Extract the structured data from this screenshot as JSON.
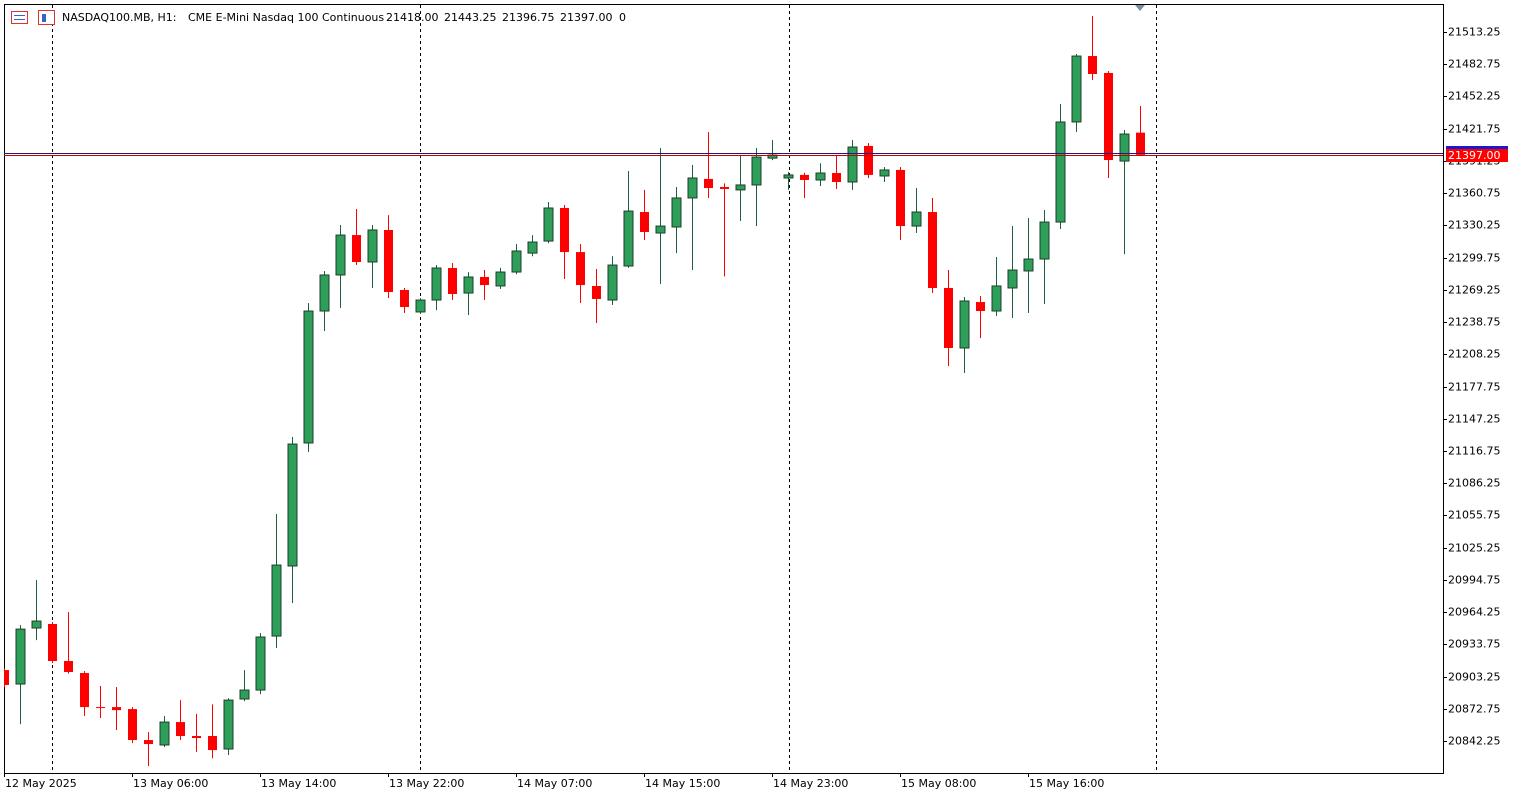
{
  "header": {
    "symbol": "NASDAQ100.MB, H1:",
    "description": "CME E-Mini Nasdaq 100 Continuous",
    "values": [
      "21418.00",
      "21443.25",
      "21396.75",
      "21397.00"
    ],
    "volume": "0"
  },
  "chart_data": {
    "type": "candlestick",
    "categories": [
      "12 May 2025",
      null,
      null,
      null,
      null,
      null,
      null,
      null,
      "13 May 06:00",
      null,
      null,
      null,
      null,
      null,
      null,
      null,
      "13 May 14:00",
      null,
      null,
      null,
      null,
      null,
      null,
      null,
      "13 May 22:00",
      null,
      null,
      null,
      null,
      null,
      null,
      null,
      "14 May 07:00",
      null,
      null,
      null,
      null,
      null,
      null,
      null,
      "14 May 15:00",
      null,
      null,
      null,
      null,
      null,
      null,
      null,
      "14 May 23:00",
      null,
      null,
      null,
      null,
      null,
      null,
      null,
      "15 May 08:00",
      null,
      null,
      null,
      null,
      null,
      null,
      null,
      "15 May 16:00",
      null,
      null,
      null,
      null,
      null,
      null,
      null
    ],
    "open": [
      20909.4,
      20896.2,
      20949.2,
      20953.0,
      20918.0,
      20906.6,
      20874.4,
      20874.4,
      20872.5,
      20843.2,
      20838.5,
      20860.2,
      20847.0,
      20847.0,
      20834.7,
      20882.0,
      20890.5,
      20941.6,
      21007.9,
      21124.3,
      21249.2,
      21283.3,
      21321.1,
      21295.6,
      21325.9,
      21269.1,
      21248.3,
      21259.6,
      21289.9,
      21266.2,
      21281.4,
      21272.9,
      21286.1,
      21304.0,
      21315.4,
      21346.7,
      21305.0,
      21272.9,
      21259.6,
      21291.8,
      21342.9,
      21323.0,
      21328.7,
      21356.2,
      21374.2,
      21366.6,
      21363.8,
      21368.5,
      21393.9,
      21375.1,
      21378.0,
      21373.2,
      21379.8,
      21371.3,
      21405.4,
      21377.0,
      21382.7,
      21329.6,
      21342.9,
      21271.0,
      21214.2,
      21257.7,
      21249.2,
      21271.0,
      21287.1,
      21298.4,
      21333.4,
      21428.1,
      21490.5,
      21474.5,
      21391.1,
      21418.0
    ],
    "high": [
      20911,
      20952,
      20994.6,
      20955,
      20964.4,
      20908.5,
      20894.3,
      20893.4,
      20874.4,
      20850.8,
      20865.9,
      20881.0,
      20868,
      20877,
      20882.9,
      20909.4,
      20944.5,
      21057.1,
      21130,
      21256.8,
      21287.1,
      21330.6,
      21345.7,
      21330.6,
      21340,
      21271,
      21261.5,
      21292.7,
      21294.6,
      21286,
      21288,
      21290,
      21312.6,
      21321,
      21352.4,
      21349.5,
      21312.6,
      21289,
      21301,
      21381.7,
      21363.8,
      21403.5,
      21366.6,
      21387.4,
      21418.6,
      21370,
      21397,
      21403.5,
      21411,
      21380.8,
      21380,
      21389,
      21397,
      21411,
      21408.2,
      21385.5,
      21385.5,
      21365.6,
      21356.2,
      21288,
      21262.5,
      21263.4,
      21300.3,
      21329.6,
      21337.2,
      21344.8,
      21445.1,
      21492.4,
      21528.4,
      21476.4,
      21420.5,
      21443.25
    ],
    "low": [
      20893,
      20858.3,
      20937.8,
      20916,
      20906,
      20865.9,
      20864,
      20852.7,
      20840.3,
      20818.6,
      20836.6,
      20843.2,
      20832,
      20826,
      20829,
      20880,
      20886.7,
      20930.3,
      20972.9,
      21115.8,
      21230.3,
      21252,
      21292.7,
      21271.0,
      21261.5,
      21247.3,
      21246.4,
      21250,
      21259.6,
      21245.4,
      21259.6,
      21270,
      21284,
      21301,
      21313.5,
      21279.5,
      21256.8,
      21237.9,
      21254.9,
      21290,
      21316.4,
      21274.8,
      21304,
      21288,
      21356.2,
      21282,
      21334.4,
      21329.6,
      21392,
      21363.8,
      21356,
      21367.5,
      21364.7,
      21363.8,
      21375,
      21371.3,
      21316.4,
      21323,
      21266.2,
      21197.2,
      21190.5,
      21223.6,
      21244.5,
      21242.6,
      21247.3,
      21255.8,
      21326.8,
      21418.6,
      21467.8,
      21375.1,
      21303.1,
      21396.75
    ],
    "close": [
      20895.3,
      20948.2,
      20955.8,
      20918.0,
      20907.6,
      20874.4,
      20873.5,
      20871.5,
      20843.2,
      20839.4,
      20860.2,
      20847.0,
      20845.1,
      20833.7,
      20881.0,
      20890.5,
      20940.7,
      21008.8,
      21123.3,
      21249.2,
      21283.3,
      21321.1,
      21295.6,
      21325.9,
      21267.2,
      21253.0,
      21259.6,
      21289.9,
      21265.3,
      21281.4,
      21273.8,
      21286.1,
      21306.0,
      21314.5,
      21346.7,
      21305.0,
      21273.8,
      21260.6,
      21292.7,
      21343.8,
      21324.0,
      21329.6,
      21356.2,
      21375.1,
      21365.6,
      21364.7,
      21368.5,
      21394.9,
      21396.8,
      21378.0,
      21373.2,
      21379.8,
      21371.3,
      21404.4,
      21378.0,
      21382.7,
      21329.6,
      21342.9,
      21271.0,
      21214.2,
      21258.7,
      21249.2,
      21272.9,
      21288.0,
      21298.4,
      21333.4,
      21428.1,
      21490.5,
      21473.5,
      21392.1,
      21416.7,
      21397.0
    ],
    "up_color": "#2e9e5b",
    "down_color": "#ff0000",
    "ylim": [
      20812.0,
      21539.75
    ],
    "yticks": [
      20842.25,
      20872.75,
      20903.25,
      20933.75,
      20964.25,
      20994.75,
      21025.25,
      21055.75,
      21086.25,
      21116.75,
      21147.25,
      21177.75,
      21208.25,
      21238.75,
      21269.25,
      21299.75,
      21330.25,
      21360.75,
      21391.25,
      21421.75,
      21452.25,
      21482.75,
      21513.25
    ],
    "last_price": {
      "value": 21397,
      "label": "21397.00"
    },
    "grid": false
  }
}
